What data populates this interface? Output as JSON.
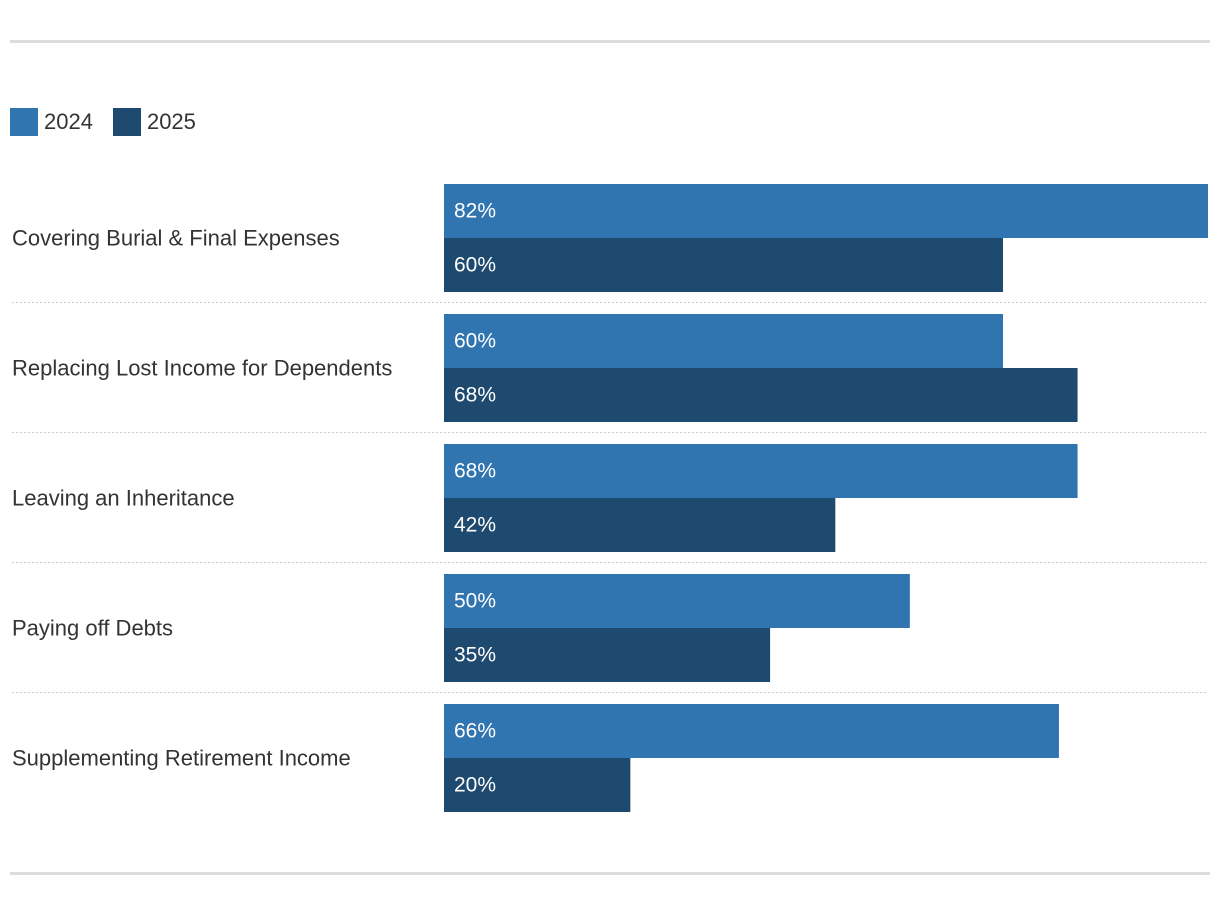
{
  "chart_data": {
    "type": "bar",
    "orientation": "horizontal",
    "categories": [
      "Covering Burial & Final Expenses",
      "Replacing Lost Income for Dependents",
      "Leaving an Inheritance",
      "Paying off Debts",
      "Supplementing Retirement Income"
    ],
    "series": [
      {
        "name": "2024",
        "color": "#3074b0",
        "values": [
          82,
          60,
          68,
          50,
          66
        ]
      },
      {
        "name": "2025",
        "color": "#1f4a6f",
        "values": [
          60,
          68,
          42,
          35,
          20
        ]
      }
    ],
    "value_suffix": "%",
    "xlim": [
      0,
      82
    ],
    "legend_position": "top-left",
    "grid": false
  }
}
